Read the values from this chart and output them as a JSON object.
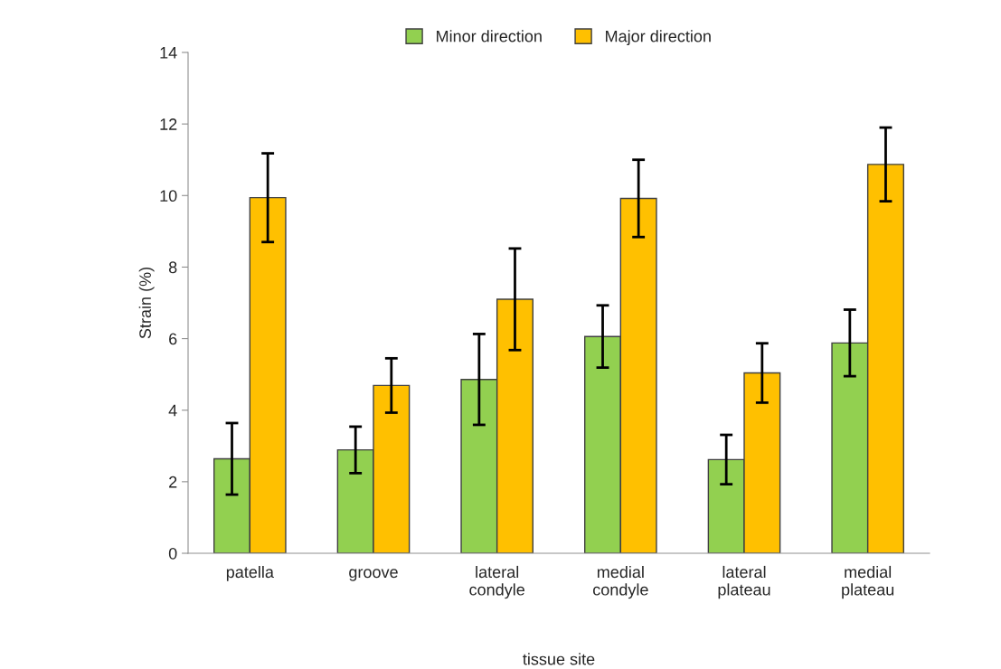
{
  "chart_data": {
    "type": "bar",
    "xlabel": "tissue site",
    "ylabel": "Strain (%)",
    "categories": [
      "patella",
      "groove",
      "lateral condyle",
      "medial condyle",
      "lateral plateau",
      "medial plateau"
    ],
    "series": [
      {
        "name": "Minor direction",
        "color": "#92d050",
        "values": [
          2.64,
          2.89,
          4.86,
          6.06,
          2.62,
          5.88
        ],
        "errors": [
          1.0,
          0.65,
          1.27,
          0.87,
          0.69,
          0.93
        ]
      },
      {
        "name": "Major direction",
        "color": "#ffc000",
        "values": [
          9.94,
          4.69,
          7.1,
          9.92,
          5.04,
          10.87
        ],
        "errors": [
          1.24,
          0.76,
          1.42,
          1.08,
          0.83,
          1.03
        ]
      }
    ],
    "ylim": [
      0,
      14
    ],
    "yticks": [
      0,
      2,
      4,
      6,
      8,
      10,
      12,
      14
    ],
    "grid": false,
    "legend": "top"
  }
}
